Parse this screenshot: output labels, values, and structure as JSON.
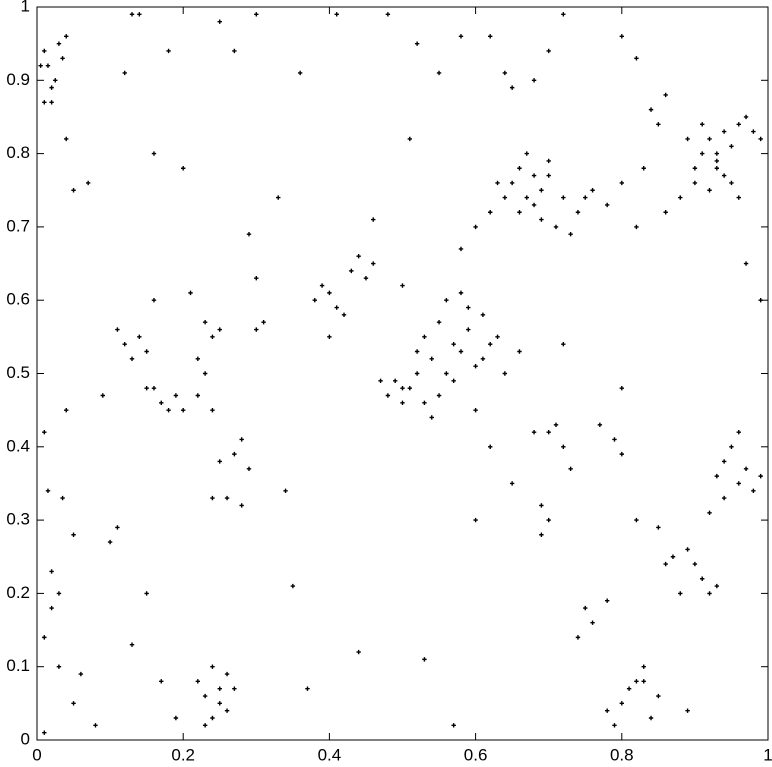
{
  "chart_data": {
    "type": "scatter",
    "color": "#000000",
    "xlim": [
      0,
      1
    ],
    "ylim": [
      0,
      1
    ],
    "xticks": [
      0,
      0.2,
      0.4,
      0.6,
      0.8,
      1
    ],
    "yticks": [
      0,
      0.1,
      0.2,
      0.3,
      0.4,
      0.5,
      0.6,
      0.7,
      0.8,
      0.9,
      1
    ],
    "x": [
      0.01,
      0.02,
      0.015,
      0.03,
      0.035,
      0.005,
      0.025,
      0.04,
      0.01,
      0.02,
      0.13,
      0.14,
      0.18,
      0.25,
      0.27,
      0.3,
      0.36,
      0.41,
      0.48,
      0.52,
      0.55,
      0.58,
      0.62,
      0.64,
      0.65,
      0.68,
      0.7,
      0.72,
      0.8,
      0.82,
      0.9,
      0.91,
      0.92,
      0.93,
      0.94,
      0.95,
      0.9,
      0.92,
      0.94,
      0.96,
      0.89,
      0.91,
      0.93,
      0.95,
      0.97,
      0.99,
      0.88,
      0.93,
      0.96,
      0.98,
      0.84,
      0.85,
      0.86,
      0.83,
      0.8,
      0.78,
      0.76,
      0.74,
      0.82,
      0.86,
      0.65,
      0.66,
      0.67,
      0.68,
      0.69,
      0.7,
      0.66,
      0.68,
      0.7,
      0.71,
      0.62,
      0.6,
      0.58,
      0.64,
      0.73,
      0.72,
      0.69,
      0.63,
      0.67,
      0.75,
      0.53,
      0.54,
      0.55,
      0.56,
      0.57,
      0.58,
      0.59,
      0.6,
      0.61,
      0.62,
      0.55,
      0.57,
      0.59,
      0.61,
      0.63,
      0.64,
      0.66,
      0.56,
      0.58,
      0.6,
      0.48,
      0.49,
      0.5,
      0.51,
      0.52,
      0.53,
      0.5,
      0.47,
      0.54,
      0.52,
      0.38,
      0.39,
      0.4,
      0.41,
      0.42,
      0.43,
      0.44,
      0.45,
      0.46,
      0.4,
      0.11,
      0.12,
      0.13,
      0.14,
      0.15,
      0.16,
      0.17,
      0.18,
      0.19,
      0.2,
      0.22,
      0.23,
      0.24,
      0.23,
      0.22,
      0.24,
      0.15,
      0.16,
      0.21,
      0.25,
      0.27,
      0.28,
      0.29,
      0.3,
      0.31,
      0.26,
      0.24,
      0.25,
      0.28,
      0.3,
      0.22,
      0.23,
      0.24,
      0.25,
      0.26,
      0.27,
      0.24,
      0.25,
      0.23,
      0.26,
      0.01,
      0.015,
      0.02,
      0.03,
      0.035,
      0.04,
      0.02,
      0.01,
      0.05,
      0.06,
      0.03,
      0.01,
      0.05,
      0.08,
      0.1,
      0.11,
      0.13,
      0.15,
      0.17,
      0.19,
      0.93,
      0.94,
      0.95,
      0.96,
      0.97,
      0.98,
      0.94,
      0.96,
      0.92,
      0.99,
      0.9,
      0.91,
      0.92,
      0.93,
      0.89,
      0.88,
      0.87,
      0.86,
      0.85,
      0.82,
      0.8,
      0.81,
      0.82,
      0.83,
      0.84,
      0.85,
      0.79,
      0.78,
      0.83,
      0.89,
      0.7,
      0.71,
      0.72,
      0.73,
      0.69,
      0.75,
      0.78,
      0.79,
      0.8,
      0.74,
      0.68,
      0.69,
      0.7,
      0.76,
      0.77,
      0.8,
      0.6,
      0.62,
      0.65,
      0.72,
      0.07,
      0.12,
      0.2,
      0.33,
      0.35,
      0.5,
      0.53,
      0.57,
      0.37,
      0.44,
      0.05,
      0.04,
      0.09,
      0.16,
      0.29,
      0.34,
      0.46,
      0.51,
      0.97,
      0.99
    ],
    "values": [
      0.87,
      0.89,
      0.92,
      0.95,
      0.93,
      0.92,
      0.9,
      0.96,
      0.94,
      0.87,
      0.99,
      0.99,
      0.94,
      0.98,
      0.94,
      0.99,
      0.91,
      0.99,
      0.99,
      0.95,
      0.91,
      0.96,
      0.96,
      0.91,
      0.89,
      0.9,
      0.94,
      0.99,
      0.96,
      0.93,
      0.78,
      0.8,
      0.82,
      0.79,
      0.83,
      0.81,
      0.76,
      0.75,
      0.77,
      0.84,
      0.82,
      0.84,
      0.78,
      0.76,
      0.85,
      0.82,
      0.74,
      0.8,
      0.74,
      0.83,
      0.86,
      0.84,
      0.88,
      0.78,
      0.76,
      0.73,
      0.75,
      0.72,
      0.7,
      0.72,
      0.76,
      0.78,
      0.74,
      0.77,
      0.75,
      0.79,
      0.72,
      0.73,
      0.77,
      0.7,
      0.72,
      0.7,
      0.67,
      0.74,
      0.69,
      0.74,
      0.71,
      0.76,
      0.8,
      0.74,
      0.55,
      0.52,
      0.57,
      0.5,
      0.54,
      0.53,
      0.56,
      0.51,
      0.58,
      0.54,
      0.47,
      0.49,
      0.59,
      0.52,
      0.55,
      0.5,
      0.53,
      0.6,
      0.61,
      0.45,
      0.47,
      0.49,
      0.46,
      0.48,
      0.5,
      0.46,
      0.48,
      0.49,
      0.44,
      0.53,
      0.6,
      0.62,
      0.61,
      0.59,
      0.58,
      0.64,
      0.66,
      0.63,
      0.65,
      0.55,
      0.56,
      0.54,
      0.52,
      0.55,
      0.53,
      0.48,
      0.46,
      0.45,
      0.47,
      0.45,
      0.47,
      0.5,
      0.55,
      0.57,
      0.52,
      0.45,
      0.48,
      0.6,
      0.61,
      0.56,
      0.39,
      0.41,
      0.37,
      0.56,
      0.57,
      0.33,
      0.33,
      0.38,
      0.32,
      0.63,
      0.08,
      0.06,
      0.03,
      0.07,
      0.09,
      0.07,
      0.1,
      0.05,
      0.02,
      0.04,
      0.42,
      0.34,
      0.23,
      0.2,
      0.33,
      0.45,
      0.18,
      0.14,
      0.28,
      0.09,
      0.1,
      0.01,
      0.05,
      0.02,
      0.27,
      0.29,
      0.13,
      0.2,
      0.08,
      0.03,
      0.36,
      0.38,
      0.4,
      0.35,
      0.37,
      0.34,
      0.33,
      0.42,
      0.31,
      0.36,
      0.24,
      0.22,
      0.2,
      0.21,
      0.26,
      0.2,
      0.25,
      0.24,
      0.29,
      0.3,
      0.05,
      0.07,
      0.08,
      0.1,
      0.03,
      0.06,
      0.02,
      0.04,
      0.08,
      0.04,
      0.42,
      0.43,
      0.4,
      0.37,
      0.32,
      0.18,
      0.19,
      0.41,
      0.39,
      0.14,
      0.42,
      0.28,
      0.3,
      0.16,
      0.43,
      0.48,
      0.3,
      0.4,
      0.35,
      0.54,
      0.76,
      0.91,
      0.78,
      0.74,
      0.21,
      0.62,
      0.11,
      0.02,
      0.07,
      0.12,
      0.75,
      0.82,
      0.47,
      0.8,
      0.69,
      0.34,
      0.71,
      0.82,
      0.65,
      0.6
    ]
  }
}
